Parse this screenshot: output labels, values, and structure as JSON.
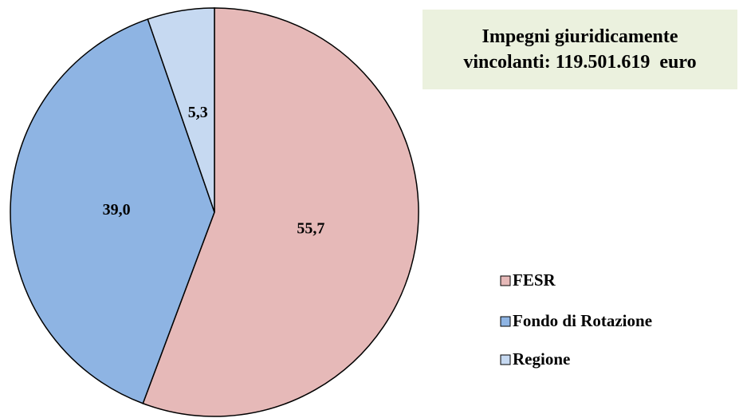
{
  "chart_data": {
    "type": "pie",
    "title": "Impegni giuridicamente vincolanti: 119.501.619  euro",
    "categories": [
      "FESR",
      "Fondo di Rotazione",
      "Regione"
    ],
    "values": [
      55.7,
      39.0,
      5.3
    ],
    "value_labels": [
      "55,7",
      "39,0",
      "5,3"
    ],
    "colors": [
      "#e6b9b8",
      "#8eb4e3",
      "#c6d9f1"
    ],
    "legend": "right"
  }
}
